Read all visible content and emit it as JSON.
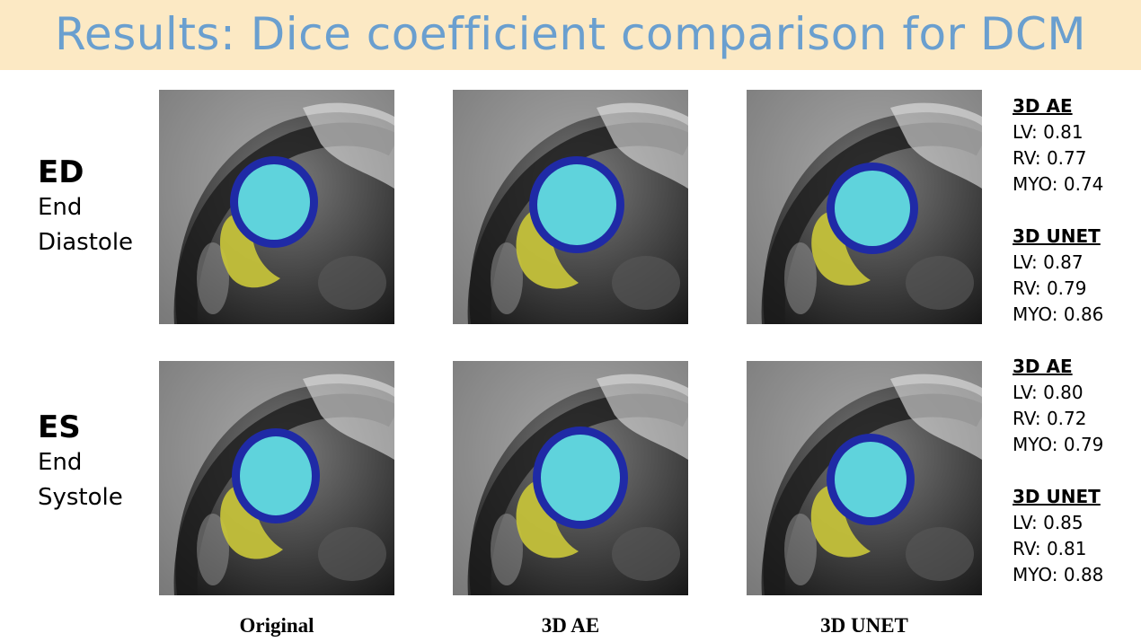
{
  "title": "Results: Dice coefficient comparison for DCM",
  "rows": [
    {
      "abbr": "ED",
      "line1": "End",
      "line2": "Diastole"
    },
    {
      "abbr": "ES",
      "line1": "End",
      "line2": "Systole"
    }
  ],
  "columns": [
    "Original",
    "3D AE",
    "3D UNET"
  ],
  "scores": [
    {
      "ae": {
        "header": "3D AE",
        "lv": "LV: 0.81",
        "rv": "RV: 0.77",
        "myo": "MYO: 0.74"
      },
      "unet": {
        "header": "3D UNET",
        "lv": "LV: 0.87",
        "rv": "RV: 0.79",
        "myo": "MYO: 0.86"
      }
    },
    {
      "ae": {
        "header": "3D AE",
        "lv": "LV: 0.80",
        "rv": "RV: 0.72",
        "myo": "MYO: 0.79"
      },
      "unet": {
        "header": "3D UNET",
        "lv": "LV: 0.85",
        "rv": "RV: 0.81",
        "myo": "MYO: 0.88"
      }
    }
  ],
  "colors": {
    "title_bg": "#fce9c4",
    "title_text": "#6a9fcf",
    "lv": "#5fd3dc",
    "myo": "#1f2aa6",
    "rv": "#c8c43a"
  }
}
